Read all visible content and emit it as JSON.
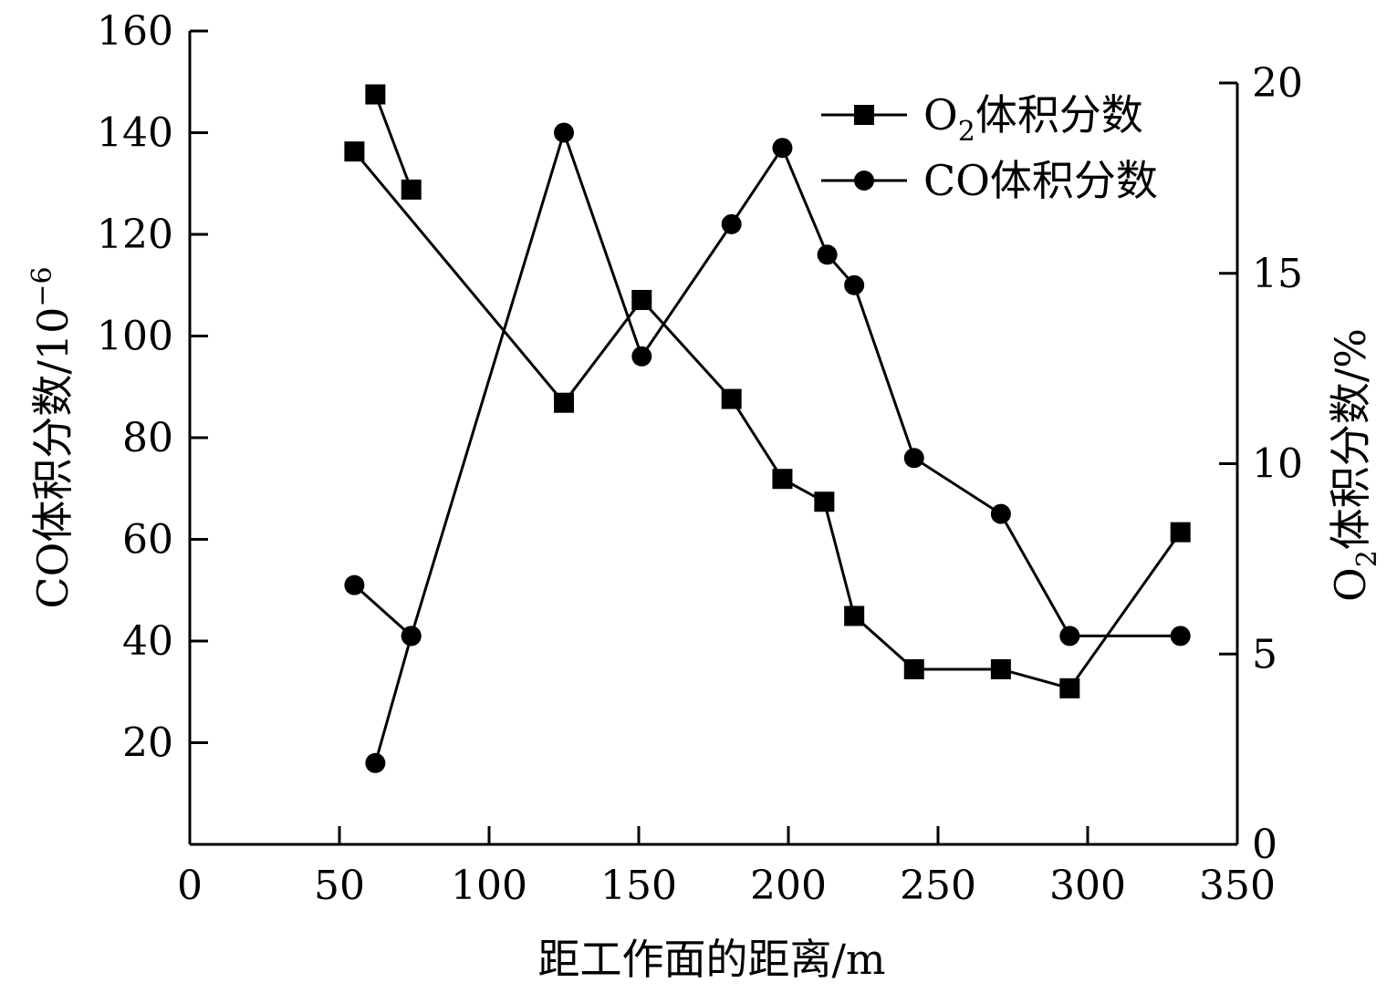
{
  "chart_data": {
    "type": "line",
    "xlabel": "距工作面的距离/m",
    "ylabel_left": "CO体积分数/10",
    "ylabel_left_exp": "−6",
    "ylabel_right_prefix": "O",
    "ylabel_right_sub": "2",
    "ylabel_right_rest": "体积分数/%",
    "xlim": [
      0,
      350
    ],
    "ylim_left": [
      0,
      160
    ],
    "ylim_right": [
      0,
      20
    ],
    "x_ticks": [
      0,
      50,
      100,
      150,
      200,
      250,
      300,
      350
    ],
    "y_left_ticks": [
      20,
      40,
      60,
      80,
      100,
      120,
      140,
      160
    ],
    "y_right_ticks": [
      0,
      5,
      10,
      15,
      20
    ],
    "series": [
      {
        "name_prefix": "O",
        "name_sub": "2",
        "name_rest": "体积分数",
        "axis": "right",
        "marker": "square",
        "segments": [
          {
            "x": [
              62,
              74
            ],
            "y": [
              19.7,
              17.2
            ]
          },
          {
            "x": [
              55,
              125,
              151,
              181,
              198,
              212,
              222,
              242,
              271,
              294,
              331
            ],
            "y": [
              18.2,
              11.6,
              14.3,
              11.7,
              9.6,
              9.0,
              6.0,
              4.6,
              4.6,
              4.1,
              8.2
            ]
          }
        ]
      },
      {
        "name": "CO体积分数",
        "axis": "left",
        "marker": "circle",
        "segments": [
          {
            "x": [
              55,
              74,
              62
            ],
            "y": [
              51,
              41,
              16
            ]
          },
          {
            "x": [
              74,
              125,
              151,
              181,
              198,
              213,
              222,
              242,
              271,
              294,
              331
            ],
            "y": [
              41,
              140,
              96,
              122,
              137,
              116,
              110,
              76,
              65,
              41,
              41
            ]
          }
        ]
      }
    ]
  }
}
